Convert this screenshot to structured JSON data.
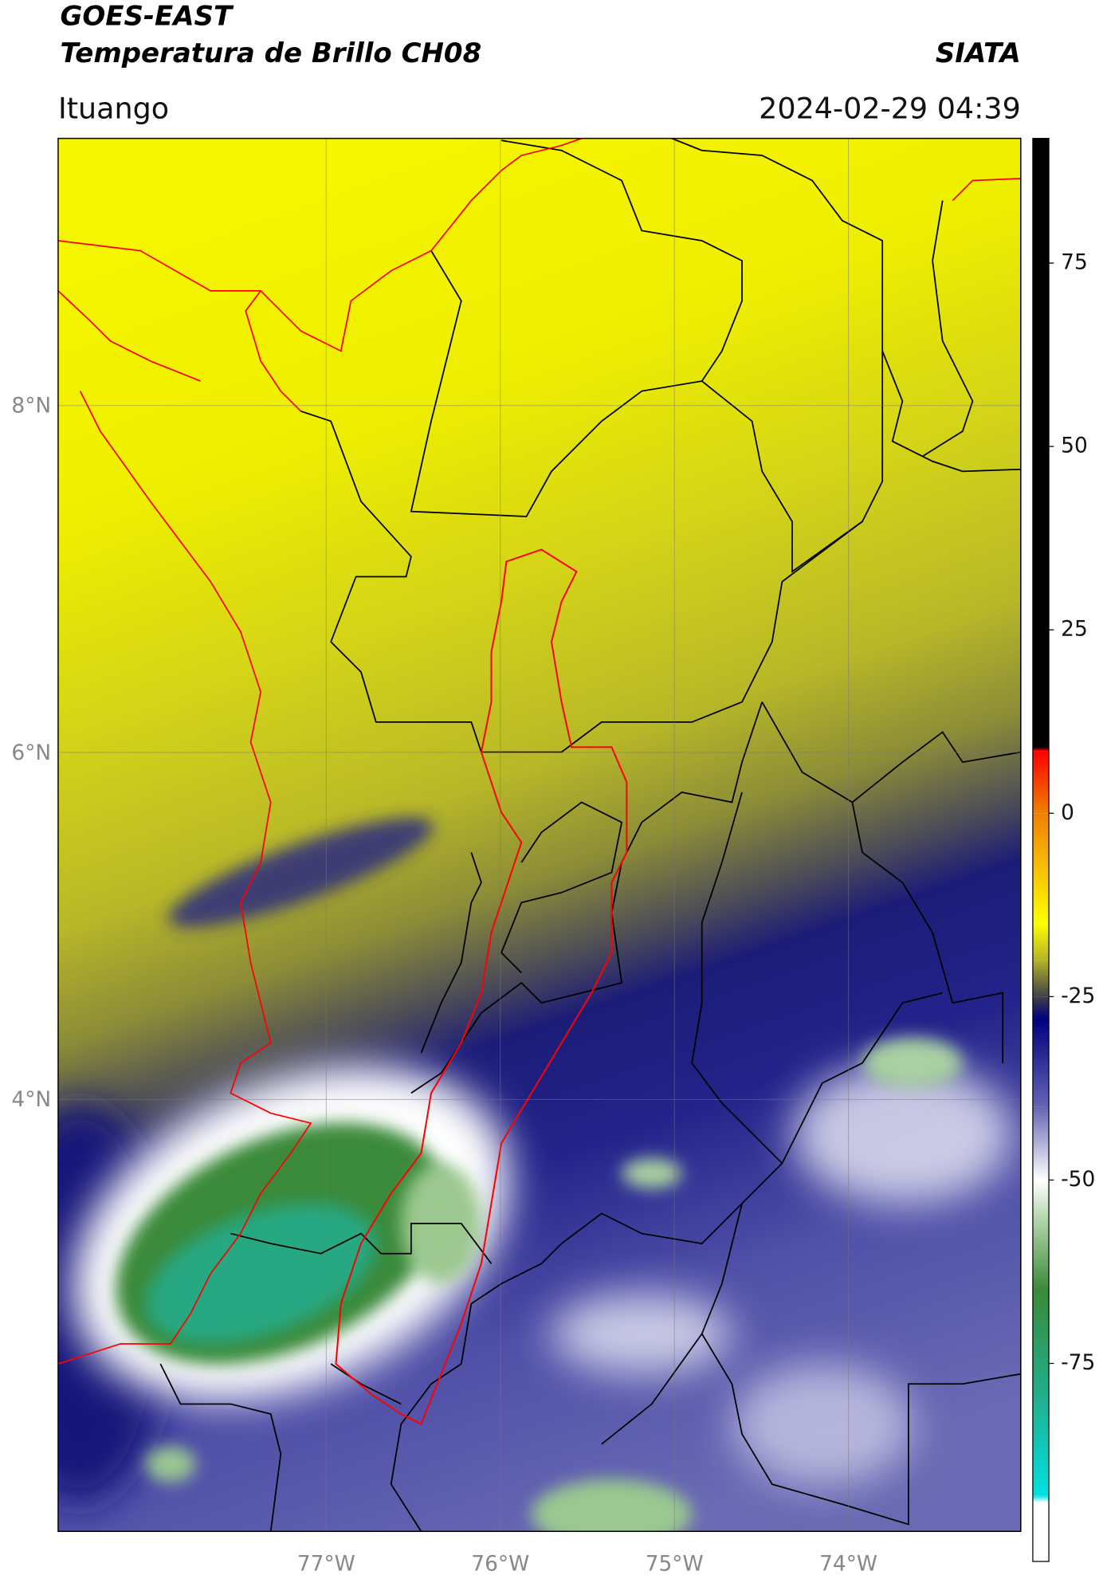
{
  "chart_data": {
    "type": "map",
    "title": "GOES-EAST",
    "subtitle": "Temperatura de Brillo CH08",
    "source": "SIATA",
    "location": "Ituango",
    "datetime": "2024-02-29 04:39",
    "xlim": [
      -78.54,
      -73.01
    ],
    "ylim": [
      1.51,
      9.54
    ],
    "xticks": [
      {
        "value": -77,
        "label": "77°W"
      },
      {
        "value": -76,
        "label": "76°W"
      },
      {
        "value": -75,
        "label": "75°W"
      },
      {
        "value": -74,
        "label": "74°W"
      }
    ],
    "yticks": [
      {
        "value": 8,
        "label": "8°N"
      },
      {
        "value": 6,
        "label": "6°N"
      },
      {
        "value": 4,
        "label": "4°N"
      }
    ],
    "grid": true,
    "colorbar": {
      "lim": [
        -102,
        92
      ],
      "ticks": [
        75,
        50,
        25,
        0,
        -25,
        -50,
        -75
      ],
      "stops": [
        {
          "value": 92,
          "color": "#000000"
        },
        {
          "value": 9,
          "color": "#000000"
        },
        {
          "value": 8.5,
          "color": "#ff0000"
        },
        {
          "value": 0,
          "color": "#f08000"
        },
        {
          "value": -15,
          "color": "#ffff00"
        },
        {
          "value": -20,
          "color": "#b4b428"
        },
        {
          "value": -25,
          "color": "#404048"
        },
        {
          "value": -28,
          "color": "#000080"
        },
        {
          "value": -40,
          "color": "#6464b4"
        },
        {
          "value": -50,
          "color": "#ffffff"
        },
        {
          "value": -55,
          "color": "#b8d8b0"
        },
        {
          "value": -65,
          "color": "#3a8a3a"
        },
        {
          "value": -80,
          "color": "#20b090"
        },
        {
          "value": -93,
          "color": "#00e0e0"
        },
        {
          "value": -94,
          "color": "#ffffff"
        },
        {
          "value": -102,
          "color": "#ffffff"
        }
      ]
    }
  }
}
